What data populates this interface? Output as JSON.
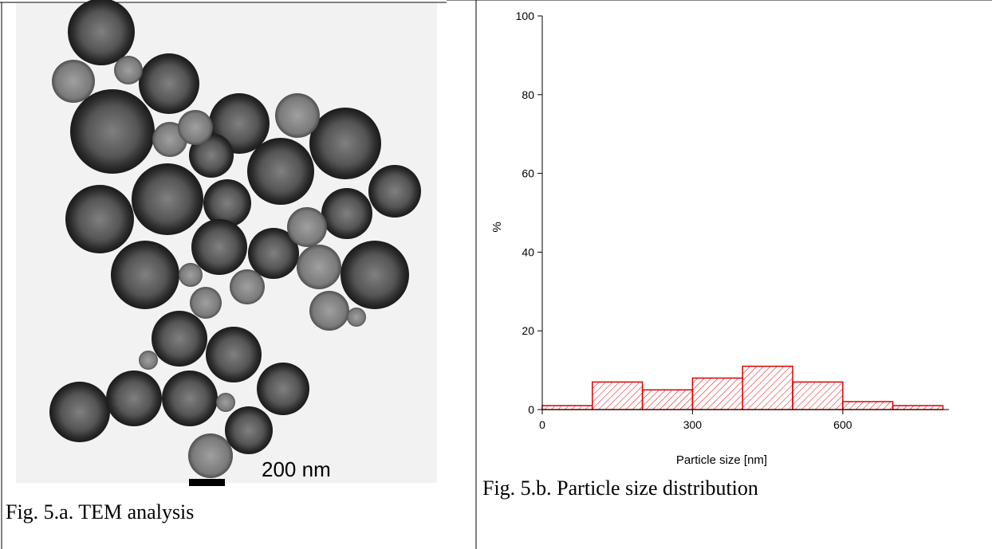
{
  "left_panel": {
    "scale_label": "200 nm",
    "caption": "Fig. 5.a. TEM analysis"
  },
  "right_panel": {
    "caption": "Fig. 5.b. Particle size distribution",
    "chart_data": {
      "type": "histogram",
      "x_label": "Particle size [nm]",
      "y_label": "%",
      "bins": [
        0,
        100,
        200,
        300,
        400,
        500,
        600,
        700,
        800
      ],
      "values": [
        1,
        7,
        5,
        8,
        11,
        7,
        2,
        1
      ],
      "color": "#e00000",
      "xlim": [
        0,
        812
      ],
      "xticks": [
        0,
        300,
        600
      ],
      "ylim": [
        0,
        100
      ],
      "yticks": [
        0,
        20,
        40,
        60,
        80,
        100
      ]
    }
  }
}
